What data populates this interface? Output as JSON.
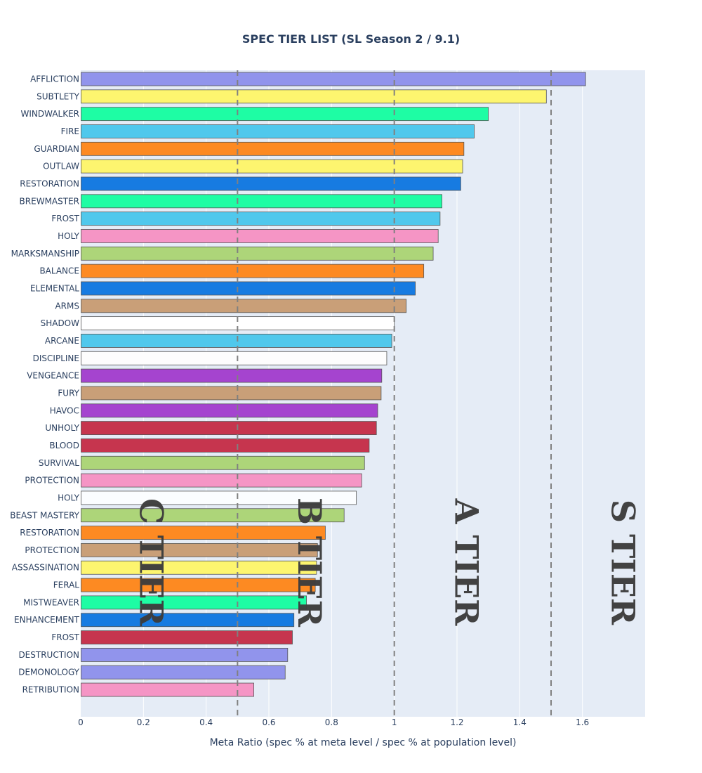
{
  "chart_data": {
    "type": "bar",
    "orientation": "horizontal",
    "title": "SPEC TIER LIST (SL Season 2 / 9.1)",
    "xlabel": "Meta Ratio (spec % at meta level / spec % at population level)",
    "ylabel": "",
    "xlim": [
      0,
      1.8
    ],
    "xticks": [
      0,
      0.2,
      0.4,
      0.6,
      0.8,
      1,
      1.2,
      1.4,
      1.6
    ],
    "xtick_labels": [
      "0",
      "0.2",
      "0.4",
      "0.6",
      "0.8",
      "1",
      "1.2",
      "1.4",
      "1.6"
    ],
    "grid": true,
    "categories": [
      "AFFLICTION",
      "SUBTLETY",
      "WINDWALKER",
      "FIRE",
      "GUARDIAN",
      "OUTLAW",
      "RESTORATION",
      "BREWMASTER",
      "FROST",
      "HOLY",
      "MARKSMANSHIP",
      "BALANCE",
      "ELEMENTAL",
      "ARMS",
      "SHADOW",
      "ARCANE",
      "DISCIPLINE",
      "VENGEANCE",
      "FURY",
      "HAVOC",
      "UNHOLY",
      "BLOOD",
      "SURVIVAL",
      "PROTECTION",
      "HOLY",
      "BEAST MASTERY",
      "RESTORATION",
      "PROTECTION",
      "ASSASSINATION",
      "FERAL",
      "MISTWEAVER",
      "ENHANCEMENT",
      "FROST",
      "DESTRUCTION",
      "DEMONOLOGY",
      "RETRIBUTION"
    ],
    "values": [
      1.61,
      1.485,
      1.3,
      1.255,
      1.222,
      1.218,
      1.212,
      1.152,
      1.146,
      1.14,
      1.124,
      1.094,
      1.067,
      1.038,
      1.0,
      0.992,
      0.976,
      0.96,
      0.958,
      0.947,
      0.943,
      0.92,
      0.905,
      0.896,
      0.879,
      0.84,
      0.78,
      0.755,
      0.752,
      0.748,
      0.72,
      0.68,
      0.675,
      0.66,
      0.652,
      0.552
    ],
    "colors": [
      "#9194ec",
      "#fdf56f",
      "#1efda4",
      "#50c8ec",
      "#fd8a22",
      "#fdf56f",
      "#177be1",
      "#1efda4",
      "#50c8ec",
      "#f595c5",
      "#add579",
      "#fd8a22",
      "#177be1",
      "#c99f78",
      "#ffffff",
      "#50c8ec",
      "#fdfdfd",
      "#a544cf",
      "#c99f78",
      "#a544cf",
      "#c6354e",
      "#c6354e",
      "#add579",
      "#f595c5",
      "#fbfdff",
      "#add579",
      "#fd8a22",
      "#c99f78",
      "#fdf56f",
      "#fd8a22",
      "#1efda4",
      "#177be1",
      "#c6354e",
      "#9194ec",
      "#9194ec",
      "#f595c5"
    ],
    "tier_thresholds": [
      0.5,
      1.0,
      1.5
    ],
    "tier_labels": [
      {
        "text": "C TIER",
        "x": 0.225
      },
      {
        "text": "B TIER",
        "x": 0.73
      },
      {
        "text": "A TIER",
        "x": 1.23
      },
      {
        "text": "S TIER",
        "x": 1.73
      }
    ]
  },
  "colors": {
    "plot_bg": "#e5ecf6",
    "grid": "#ffffff",
    "text": "#2a3f5f",
    "bar_outline": "#555555",
    "threshold_line": "#808080"
  }
}
